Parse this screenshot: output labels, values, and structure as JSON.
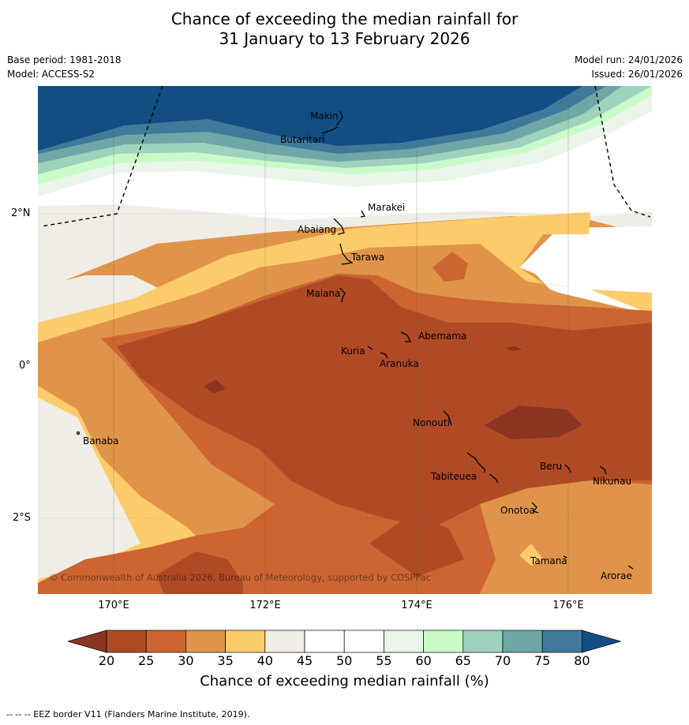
{
  "title": {
    "line1": "Chance of exceeding the median rainfall for",
    "line2": "31 January to 13 February 2026"
  },
  "meta": {
    "base_period": "Base period: 1981-2018",
    "model": "Model: ACCESS-S2",
    "model_run": "Model run: 24/01/2026",
    "issued": "Issued: 26/01/2026"
  },
  "map": {
    "lat_labels": [
      "2°N",
      "0°",
      "2°S"
    ],
    "lon_labels": [
      "170°E",
      "172°E",
      "174°E",
      "176°E"
    ],
    "places": [
      "Makin",
      "Butaritari",
      "Marakei",
      "Abaiang",
      "Tarawa",
      "Maiana",
      "Abemama",
      "Kuria",
      "Aranuka",
      "Nonouti",
      "Banaba",
      "Tabiteuea",
      "Beru",
      "Nikunau",
      "Onotoa",
      "Tamana",
      "Arorae"
    ],
    "copyright": "© Commonwealth of Australia 2026, Bureau of Meteorology, supported by COSPPac"
  },
  "colorbar": {
    "ticks": [
      "20",
      "25",
      "30",
      "35",
      "40",
      "45",
      "50",
      "55",
      "60",
      "65",
      "70",
      "75",
      "80"
    ],
    "colors": [
      "#8c3522",
      "#b04a25",
      "#cc6531",
      "#e0944a",
      "#fdcc6a",
      "#f0ede7",
      "#ffffff",
      "#ffffff",
      "#eaf5ea",
      "#c9fbc9",
      "#9ed2bd",
      "#6fa7a7",
      "#407a9a",
      "#124e84"
    ],
    "title": "Chance of exceeding median rainfall (%)"
  },
  "footnote": "--  --  -- EEZ border V11 (Flanders Marine Institute, 2019)."
}
